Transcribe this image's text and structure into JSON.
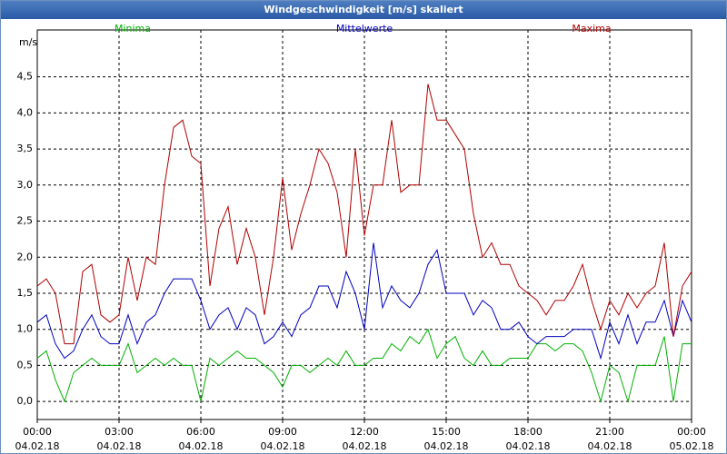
{
  "chart_data": {
    "type": "line",
    "title": "Windgeschwindigkeit [m/s] skaliert",
    "y_label": "m/s",
    "x": [
      0,
      20,
      40,
      60,
      80,
      100,
      120,
      140,
      160,
      180,
      200,
      220,
      240,
      260,
      280,
      300,
      320,
      340,
      360,
      380,
      400,
      420,
      440,
      460,
      480,
      500,
      520,
      540,
      560,
      580,
      600,
      620,
      640,
      660,
      680,
      700,
      720,
      740,
      760,
      780,
      800,
      820,
      840,
      860,
      880,
      900,
      920,
      940,
      960,
      980,
      1000,
      1020,
      1040,
      1060,
      1080,
      1100,
      1120,
      1140,
      1160,
      1180,
      1200,
      1220,
      1240,
      1260,
      1280,
      1300,
      1320,
      1340,
      1360,
      1380,
      1400,
      1420,
      1440
    ],
    "xlim": [
      0,
      1440
    ],
    "xticks": [
      {
        "value": 0,
        "label": "00:00\n04.02.18"
      },
      {
        "value": 180,
        "label": "03:00\n04.02.18"
      },
      {
        "value": 360,
        "label": "06:00\n04.02.18"
      },
      {
        "value": 540,
        "label": "09:00\n04.02.18"
      },
      {
        "value": 720,
        "label": "12:00\n04.02.18"
      },
      {
        "value": 900,
        "label": "15:00\n04.02.18"
      },
      {
        "value": 1080,
        "label": "18:00\n04.02.18"
      },
      {
        "value": 1260,
        "label": "21:00\n04.02.18"
      },
      {
        "value": 1440,
        "label": "00:00\n05.02.18"
      }
    ],
    "ylim": [
      -0.25,
      5.15
    ],
    "yticks": [
      {
        "value": 0,
        "label": "0,0"
      },
      {
        "value": 0.5,
        "label": "0,5"
      },
      {
        "value": 1,
        "label": "1,0"
      },
      {
        "value": 1.5,
        "label": "1,5"
      },
      {
        "value": 2,
        "label": "2,0"
      },
      {
        "value": 2.5,
        "label": "2,5"
      },
      {
        "value": 3,
        "label": "3,0"
      },
      {
        "value": 3.5,
        "label": "3,5"
      },
      {
        "value": 4,
        "label": "4,0"
      },
      {
        "value": 4.5,
        "label": "4,5"
      }
    ],
    "grid": true,
    "series": [
      {
        "name": "Minima",
        "color": "#00b000",
        "values": [
          0.6,
          0.7,
          0.3,
          0.0,
          0.4,
          0.5,
          0.6,
          0.5,
          0.5,
          0.5,
          0.8,
          0.4,
          0.5,
          0.6,
          0.5,
          0.6,
          0.5,
          0.5,
          0.0,
          0.6,
          0.5,
          0.6,
          0.7,
          0.6,
          0.6,
          0.5,
          0.4,
          0.2,
          0.5,
          0.5,
          0.4,
          0.5,
          0.6,
          0.5,
          0.7,
          0.5,
          0.5,
          0.6,
          0.6,
          0.8,
          0.7,
          0.9,
          0.8,
          1.0,
          0.6,
          0.8,
          0.9,
          0.6,
          0.5,
          0.7,
          0.5,
          0.5,
          0.6,
          0.6,
          0.6,
          0.8,
          0.8,
          0.7,
          0.8,
          0.8,
          0.7,
          0.4,
          0.0,
          0.5,
          0.4,
          0.0,
          0.5,
          0.5,
          0.5,
          0.9,
          0.0,
          0.8,
          0.8
        ]
      },
      {
        "name": "Mittelwerte",
        "color": "#0000c0",
        "values": [
          1.1,
          1.2,
          0.8,
          0.6,
          0.7,
          1.0,
          1.2,
          0.9,
          0.8,
          0.8,
          1.2,
          0.8,
          1.1,
          1.2,
          1.5,
          1.7,
          1.7,
          1.7,
          1.4,
          1.0,
          1.2,
          1.3,
          1.0,
          1.3,
          1.2,
          0.8,
          0.9,
          1.1,
          0.9,
          1.2,
          1.3,
          1.6,
          1.6,
          1.3,
          1.8,
          1.5,
          1.0,
          2.2,
          1.3,
          1.6,
          1.4,
          1.3,
          1.5,
          1.9,
          2.1,
          1.5,
          1.5,
          1.5,
          1.2,
          1.4,
          1.3,
          1.0,
          1.0,
          1.1,
          0.9,
          0.8,
          0.9,
          0.9,
          0.9,
          1.0,
          1.0,
          1.0,
          0.6,
          1.1,
          0.8,
          1.2,
          0.8,
          1.1,
          1.1,
          1.4,
          0.9,
          1.4,
          1.1
        ]
      },
      {
        "name": "Maxima",
        "color": "#b00000",
        "values": [
          1.6,
          1.7,
          1.5,
          0.8,
          0.8,
          1.8,
          1.9,
          1.2,
          1.1,
          1.2,
          2.0,
          1.4,
          2.0,
          1.9,
          3.0,
          3.8,
          3.9,
          3.4,
          3.3,
          1.6,
          2.4,
          2.7,
          1.9,
          2.4,
          2.0,
          1.2,
          2.0,
          3.1,
          2.1,
          2.6,
          3.0,
          3.5,
          3.3,
          2.9,
          2.0,
          3.5,
          2.3,
          3.0,
          3.0,
          3.9,
          2.9,
          3.0,
          3.0,
          4.4,
          3.9,
          3.9,
          3.7,
          3.5,
          2.6,
          2.0,
          2.2,
          1.9,
          1.9,
          1.6,
          1.5,
          1.4,
          1.2,
          1.4,
          1.4,
          1.6,
          1.9,
          1.4,
          1.0,
          1.4,
          1.2,
          1.5,
          1.3,
          1.5,
          1.6,
          2.2,
          0.9,
          1.6,
          1.8
        ]
      }
    ]
  }
}
